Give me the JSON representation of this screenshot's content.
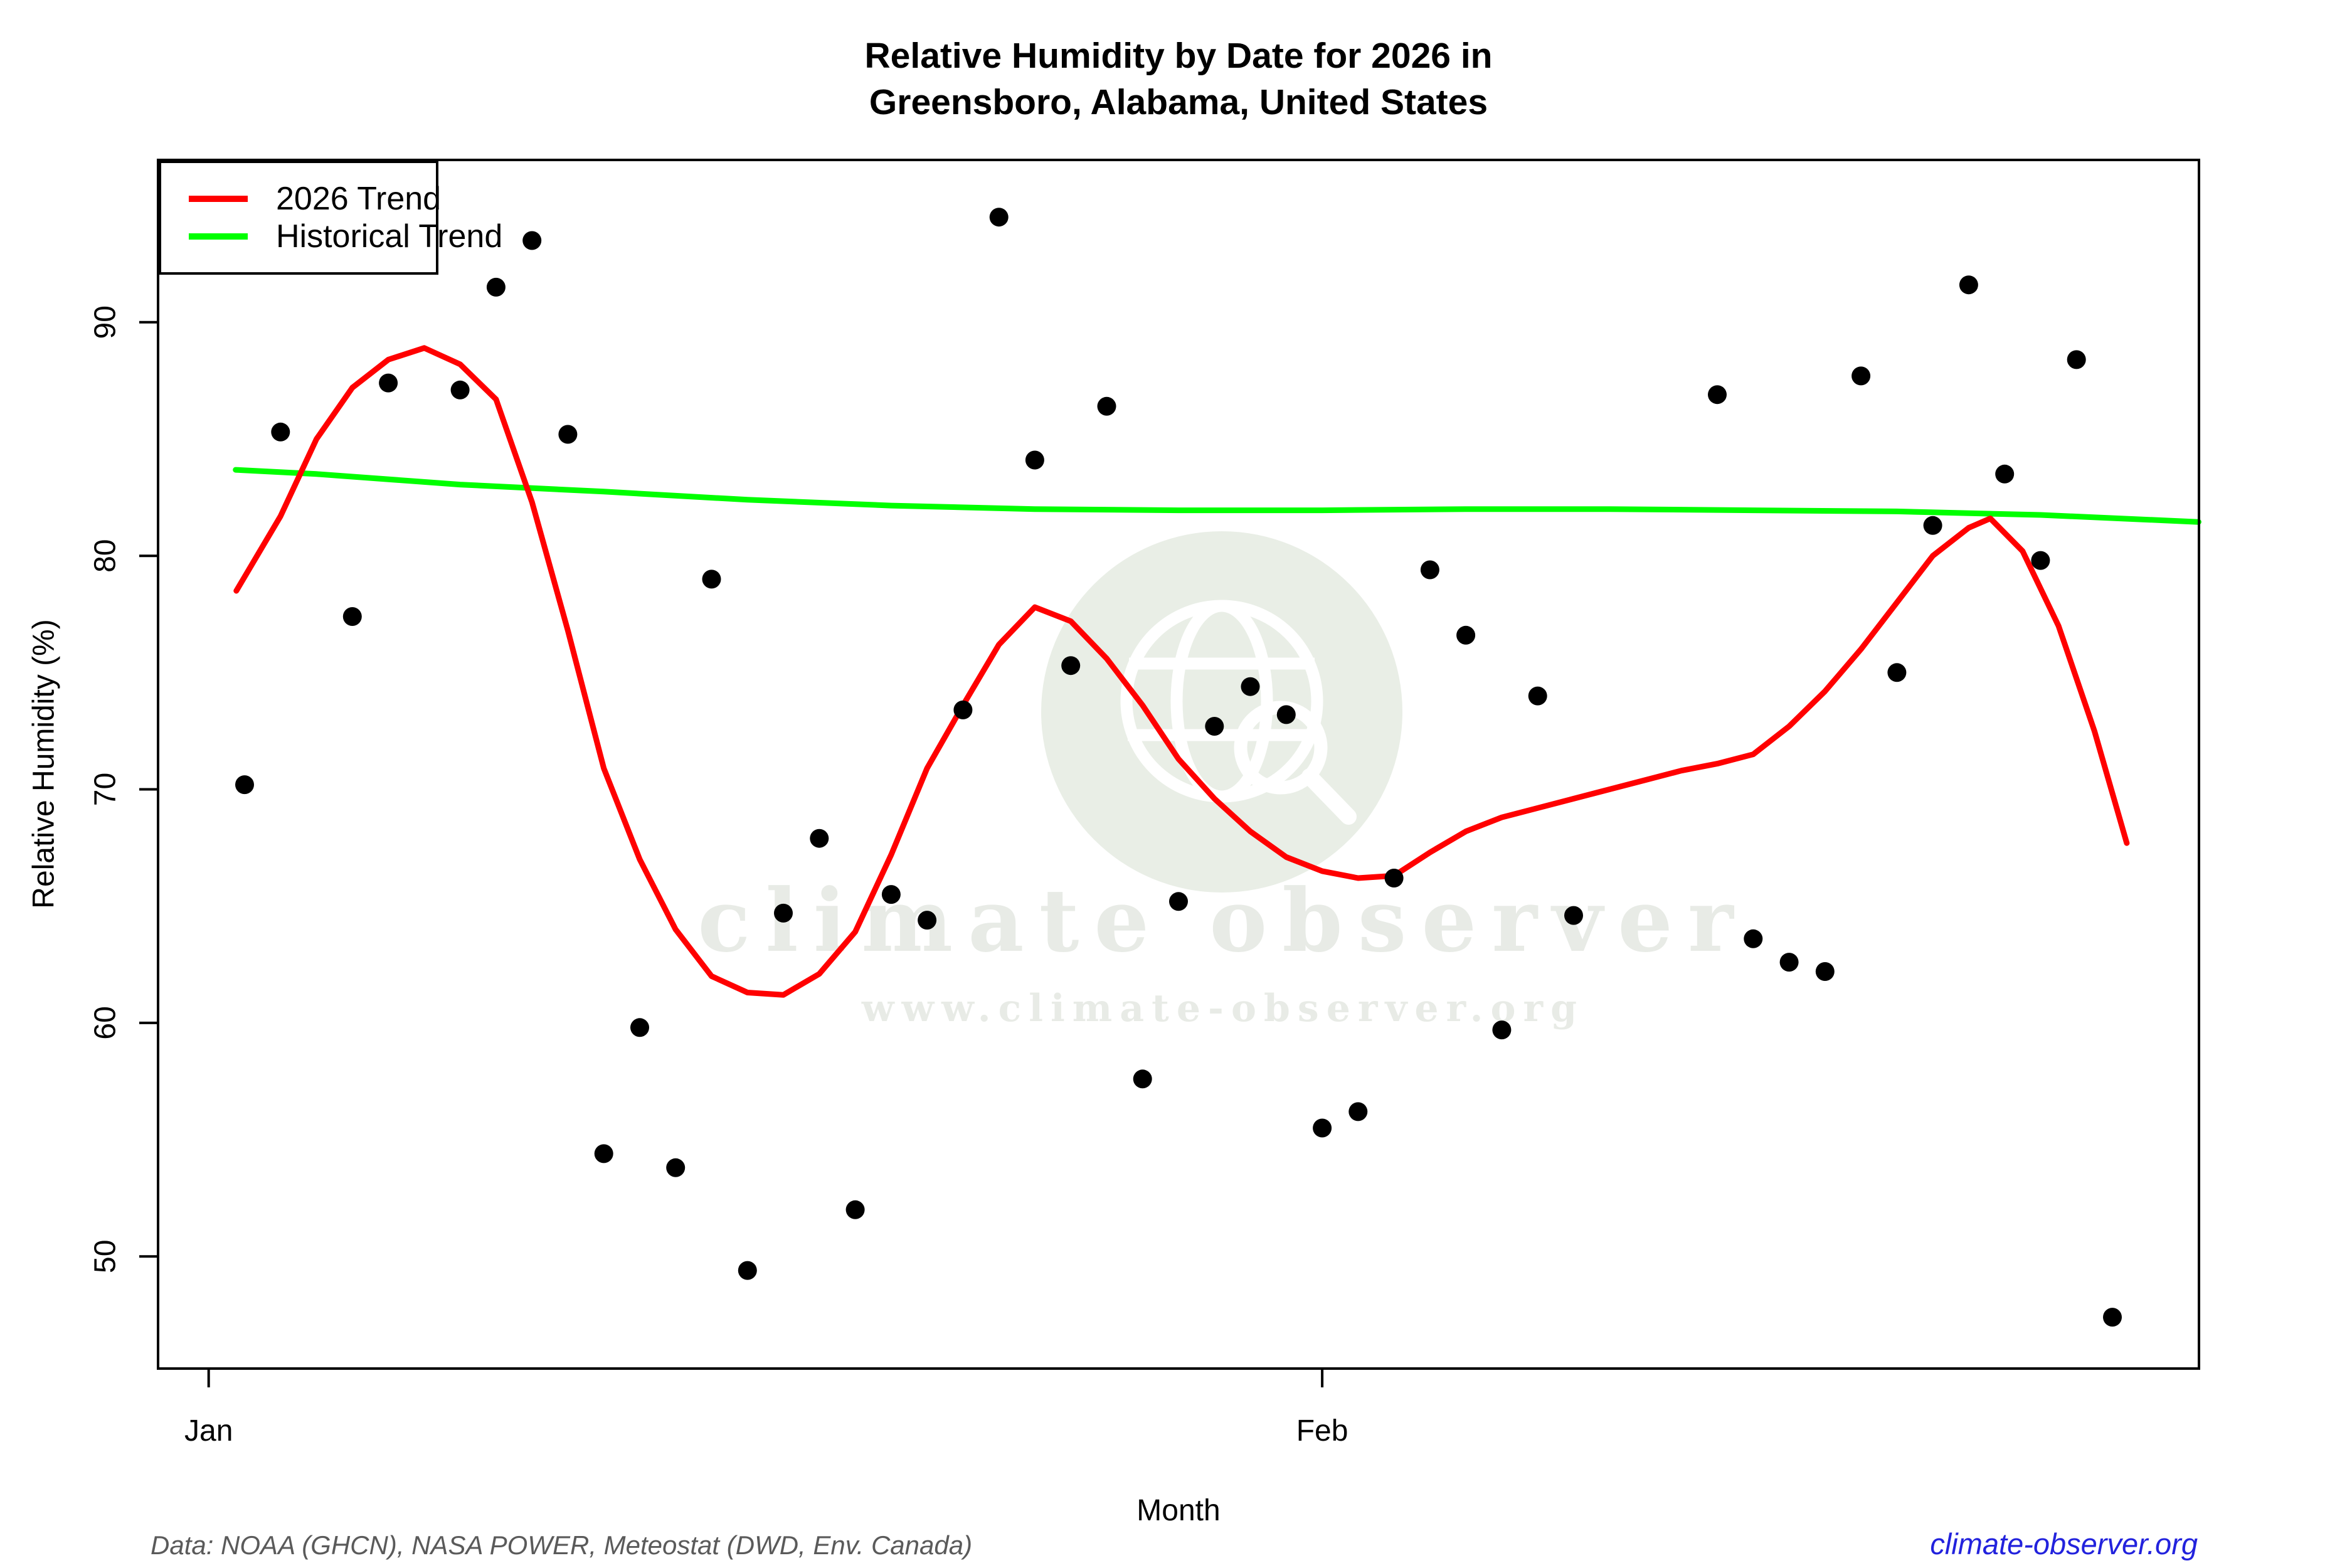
{
  "title": {
    "line1": "Relative Humidity by Date for 2026 in",
    "line2": "Greensboro, Alabama, United States"
  },
  "legend": {
    "items": [
      {
        "label": "2026 Trend",
        "color": "#ff0000"
      },
      {
        "label": "Historical Trend",
        "color": "#00ff00"
      }
    ]
  },
  "axes": {
    "y": {
      "label": "Relative Humidity (%)"
    },
    "x": {
      "label": "Month"
    }
  },
  "watermark": {
    "line1": "climate observer",
    "line2": "www.climate-observer.org"
  },
  "footer": {
    "source": "Data: NOAA (GHCN), NASA POWER, Meteostat (DWD, Env. Canada)",
    "link": "climate-observer.org"
  },
  "colors": {
    "trend_2026": "#ff0000",
    "trend_historical": "#00ff00",
    "points": "#000000",
    "frame": "#000000",
    "watermark": "#e9eee6",
    "link": "#2222dd",
    "source_text": "#5a5a5a"
  },
  "chart_data": {
    "type": "scatter",
    "title": "Relative Humidity by Date for 2026 in Greensboro, Alabama, United States",
    "xlabel": "Month",
    "ylabel": "Relative Humidity (%)",
    "x_unit": "day index, 1 = Jan 1, 32 = Feb 1",
    "xlim": [
      -0.41,
      56.41
    ],
    "ylim": [
      45.2,
      96.95
    ],
    "x_ticks": [
      {
        "label": "Jan",
        "day": 1
      },
      {
        "label": "Feb",
        "day": 32
      }
    ],
    "y_ticks": [
      90,
      80,
      70,
      60,
      50
    ],
    "grid": false,
    "legend_position": "topleft",
    "points": {
      "color": "#000000",
      "data": [
        [
          2,
          70.2,
          "Jan 2"
        ],
        [
          3,
          85.3,
          "Jan 3"
        ],
        [
          5,
          77.4,
          "Jan 5"
        ],
        [
          6,
          87.4,
          "Jan 6"
        ],
        [
          8,
          87.1,
          "Jan 8"
        ],
        [
          9,
          91.5,
          "Jan 9"
        ],
        [
          10,
          93.5,
          "Jan 10"
        ],
        [
          11,
          85.2,
          "Jan 11"
        ],
        [
          12,
          54.4,
          "Jan 12"
        ],
        [
          13,
          59.8,
          "Jan 13"
        ],
        [
          14,
          53.8,
          "Jan 14"
        ],
        [
          15,
          79.0,
          "Jan 15"
        ],
        [
          16,
          49.4,
          "Jan 16"
        ],
        [
          17,
          64.7,
          "Jan 17"
        ],
        [
          18,
          67.9,
          "Jan 18"
        ],
        [
          19,
          52.0,
          "Jan 19"
        ],
        [
          20,
          65.5,
          "Jan 20"
        ],
        [
          21,
          64.4,
          "Jan 21"
        ],
        [
          22,
          73.4,
          "Jan 22"
        ],
        [
          23,
          94.5,
          "Jan 23"
        ],
        [
          24,
          84.1,
          "Jan 24"
        ],
        [
          25,
          75.3,
          "Jan 25"
        ],
        [
          26,
          86.4,
          "Jan 26"
        ],
        [
          27,
          57.6,
          "Jan 27"
        ],
        [
          28,
          65.2,
          "Jan 28"
        ],
        [
          29,
          72.7,
          "Jan 29"
        ],
        [
          30,
          74.4,
          "Jan 30"
        ],
        [
          31,
          73.2,
          "Jan 31"
        ],
        [
          32,
          55.5,
          "Feb 1"
        ],
        [
          33,
          56.2,
          "Feb 2"
        ],
        [
          34,
          66.2,
          "Feb 3"
        ],
        [
          35,
          79.4,
          "Feb 4"
        ],
        [
          36,
          76.6,
          "Feb 5"
        ],
        [
          37,
          59.7,
          "Feb 6"
        ],
        [
          38,
          74.0,
          "Feb 7"
        ],
        [
          39,
          64.6,
          "Feb 8"
        ],
        [
          43,
          86.9,
          "Feb 12"
        ],
        [
          44,
          63.6,
          "Feb 13"
        ],
        [
          45,
          62.6,
          "Feb 14"
        ],
        [
          46,
          62.2,
          "Feb 15"
        ],
        [
          47,
          87.7,
          "Feb 16"
        ],
        [
          48,
          75.0,
          "Feb 17"
        ],
        [
          49,
          81.3,
          "Feb 18"
        ],
        [
          50,
          91.6,
          "Feb 19"
        ],
        [
          51,
          83.5,
          "Feb 20"
        ],
        [
          52,
          79.8,
          "Feb 21"
        ],
        [
          53,
          88.4,
          "Feb 22"
        ],
        [
          54,
          47.4,
          "Feb 23"
        ]
      ]
    },
    "series": [
      {
        "name": "2026 Trend",
        "color": "#ff0000",
        "points": [
          [
            1.77,
            78.5
          ],
          [
            3,
            81.7
          ],
          [
            4,
            85.0
          ],
          [
            5,
            87.2
          ],
          [
            6,
            88.4
          ],
          [
            7,
            88.9
          ],
          [
            8,
            88.2
          ],
          [
            9,
            86.7
          ],
          [
            10,
            82.3
          ],
          [
            11,
            76.8
          ],
          [
            12,
            70.9
          ],
          [
            13,
            67.0
          ],
          [
            14,
            64.0
          ],
          [
            15,
            62.0
          ],
          [
            16,
            61.3
          ],
          [
            17,
            61.2
          ],
          [
            18,
            62.1
          ],
          [
            19,
            63.9
          ],
          [
            20,
            67.2
          ],
          [
            21,
            70.9
          ],
          [
            22,
            73.6
          ],
          [
            23,
            76.2
          ],
          [
            24,
            77.8
          ],
          [
            25,
            77.2
          ],
          [
            26,
            75.6
          ],
          [
            27,
            73.6
          ],
          [
            28,
            71.3
          ],
          [
            29,
            69.6
          ],
          [
            30,
            68.2
          ],
          [
            31,
            67.1
          ],
          [
            32,
            66.5
          ],
          [
            33,
            66.2
          ],
          [
            34,
            66.3
          ],
          [
            35,
            67.3
          ],
          [
            36,
            68.2
          ],
          [
            37,
            68.8
          ],
          [
            38,
            69.2
          ],
          [
            39,
            69.6
          ],
          [
            40,
            70.0
          ],
          [
            41,
            70.4
          ],
          [
            42,
            70.8
          ],
          [
            43,
            71.1
          ],
          [
            44,
            71.5
          ],
          [
            45,
            72.7
          ],
          [
            46,
            74.2
          ],
          [
            47,
            76.0
          ],
          [
            48,
            78.0
          ],
          [
            49,
            80.0
          ],
          [
            50,
            81.2
          ],
          [
            50.6,
            81.6
          ],
          [
            51.5,
            80.2
          ],
          [
            52.5,
            77.0
          ],
          [
            53.5,
            72.5
          ],
          [
            54.4,
            67.7
          ]
        ]
      },
      {
        "name": "Historical Trend",
        "color": "#00ff00",
        "points": [
          [
            1.75,
            83.68
          ],
          [
            4,
            83.5
          ],
          [
            8,
            83.05
          ],
          [
            12,
            82.75
          ],
          [
            16,
            82.4
          ],
          [
            20,
            82.15
          ],
          [
            24,
            82.0
          ],
          [
            28,
            81.95
          ],
          [
            32,
            81.95
          ],
          [
            36,
            82.0
          ],
          [
            40,
            82.0
          ],
          [
            44,
            81.95
          ],
          [
            48,
            81.9
          ],
          [
            52,
            81.75
          ],
          [
            56.4,
            81.45
          ]
        ]
      }
    ]
  }
}
